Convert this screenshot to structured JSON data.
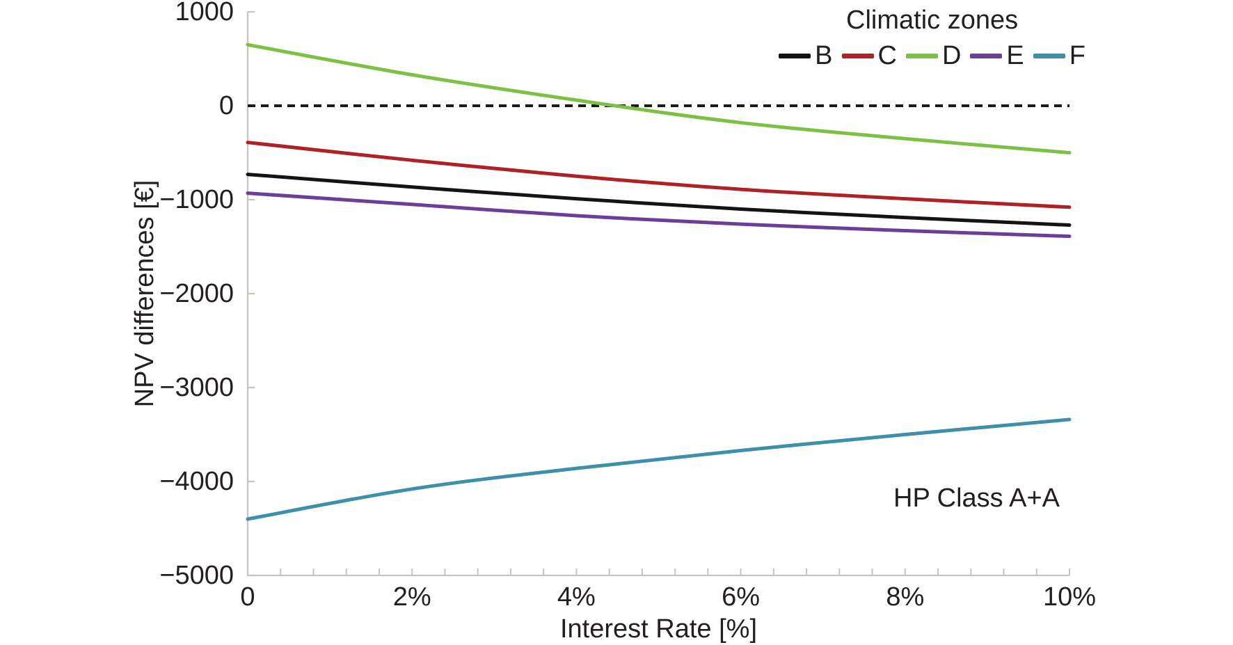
{
  "figure": {
    "legend_title": "Climatic zones",
    "xlabel": "Interest Rate [%]",
    "ylabel": "NPV differences [€]",
    "annotation": "HP Class A+A"
  },
  "colors": {
    "axis": "#c7c3bf",
    "zero_line": "#1a1a1a",
    "text": "#231f20",
    "background": "#ffffff"
  },
  "chart_data": {
    "type": "line",
    "title": "Climatic zones",
    "xlabel": "Interest Rate [%]",
    "ylabel": "NPV differences [€]",
    "annotation": "HP Class A+A",
    "legend_title": "Climatic zones",
    "legend_position": "top-right",
    "grid": false,
    "x_unit": "percent",
    "x": [
      0,
      2,
      4,
      6,
      8,
      10
    ],
    "xlim": [
      0,
      10
    ],
    "ylim": [
      -5000,
      1000
    ],
    "x_major_ticks": [
      {
        "value": 0,
        "label": "0"
      },
      {
        "value": 2,
        "label": "2%"
      },
      {
        "value": 4,
        "label": "4%"
      },
      {
        "value": 6,
        "label": "6%"
      },
      {
        "value": 8,
        "label": "8%"
      },
      {
        "value": 10,
        "label": "10%"
      }
    ],
    "x_minor_tick_step": 0.4,
    "y_ticks": [
      {
        "value": 1000,
        "label": "1000"
      },
      {
        "value": 0,
        "label": "0"
      },
      {
        "value": -1000,
        "label": "−1000"
      },
      {
        "value": -2000,
        "label": "−2000"
      },
      {
        "value": -3000,
        "label": "−3000"
      },
      {
        "value": -4000,
        "label": "−4000"
      },
      {
        "value": -5000,
        "label": "−5000"
      }
    ],
    "zero_line": {
      "value": 0,
      "style": "dashed",
      "color": "#1a1a1a"
    },
    "series": [
      {
        "name": "B",
        "color": "#161413",
        "values": [
          -730,
          -865,
          -990,
          -1100,
          -1190,
          -1270
        ]
      },
      {
        "name": "C",
        "color": "#b02125",
        "values": [
          -390,
          -580,
          -750,
          -890,
          -990,
          -1080
        ]
      },
      {
        "name": "D",
        "color": "#7cc143",
        "values": [
          650,
          330,
          60,
          -180,
          -350,
          -500
        ]
      },
      {
        "name": "E",
        "color": "#6c3d99",
        "values": [
          -930,
          -1050,
          -1170,
          -1260,
          -1330,
          -1390
        ]
      },
      {
        "name": "F",
        "color": "#3c90aa",
        "values": [
          -4400,
          -4080,
          -3860,
          -3670,
          -3500,
          -3340
        ]
      }
    ]
  }
}
